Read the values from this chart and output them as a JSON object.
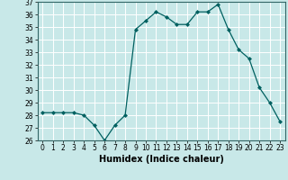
{
  "x": [
    0,
    1,
    2,
    3,
    4,
    5,
    6,
    7,
    8,
    9,
    10,
    11,
    12,
    13,
    14,
    15,
    16,
    17,
    18,
    19,
    20,
    21,
    22,
    23
  ],
  "y": [
    28.2,
    28.2,
    28.2,
    28.2,
    28.0,
    27.2,
    26.0,
    27.2,
    28.0,
    34.8,
    35.5,
    36.2,
    35.8,
    35.2,
    35.2,
    36.2,
    36.2,
    36.8,
    34.8,
    33.2,
    32.5,
    30.2,
    29.0,
    27.5
  ],
  "line_color": "#006060",
  "marker": "D",
  "marker_size": 2.0,
  "bg_color": "#c8e8e8",
  "grid_color": "#ffffff",
  "xlabel": "Humidex (Indice chaleur)",
  "ylim": [
    26,
    37
  ],
  "xlim": [
    -0.5,
    23.5
  ],
  "yticks": [
    26,
    27,
    28,
    29,
    30,
    31,
    32,
    33,
    34,
    35,
    36,
    37
  ],
  "xticks": [
    0,
    1,
    2,
    3,
    4,
    5,
    6,
    7,
    8,
    9,
    10,
    11,
    12,
    13,
    14,
    15,
    16,
    17,
    18,
    19,
    20,
    21,
    22,
    23
  ],
  "tick_fontsize": 5.5,
  "xlabel_fontsize": 7.0
}
